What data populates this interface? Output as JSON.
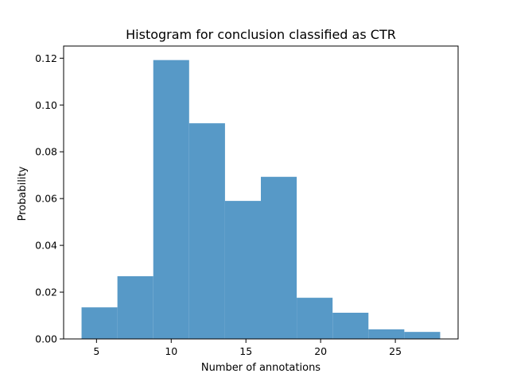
{
  "chart_data": {
    "type": "bar",
    "title": "Histogram for conclusion classified as CTR",
    "xlabel": "Number of annotations",
    "ylabel": "Probability",
    "bin_edges": [
      4.0,
      6.4,
      8.8,
      11.2,
      13.6,
      16.0,
      18.4,
      20.8,
      23.2,
      25.6,
      28.0
    ],
    "values": [
      0.0135,
      0.0268,
      0.1192,
      0.0922,
      0.059,
      0.0693,
      0.0176,
      0.0112,
      0.0041,
      0.003
    ],
    "xlim": [
      2.8,
      29.2
    ],
    "ylim": [
      0,
      0.1252
    ],
    "xticks": [
      5,
      10,
      15,
      20,
      25
    ],
    "xtick_labels": [
      "5",
      "10",
      "15",
      "20",
      "25"
    ],
    "yticks": [
      0.0,
      0.02,
      0.04,
      0.06,
      0.08,
      0.1,
      0.12
    ],
    "ytick_labels": [
      "0.00",
      "0.02",
      "0.04",
      "0.06",
      "0.08",
      "0.10",
      "0.12"
    ],
    "grid": false,
    "bar_color": "#5799c7",
    "axis_color": "#000000"
  }
}
